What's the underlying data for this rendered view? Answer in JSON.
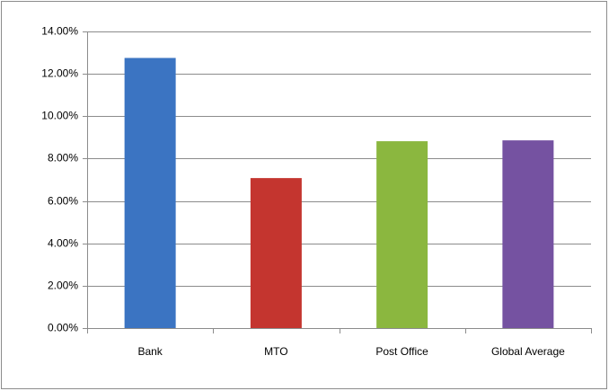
{
  "chart_data": {
    "type": "bar",
    "categories": [
      "Bank",
      "MTO",
      "Post Office",
      "Global Average"
    ],
    "values": [
      12.75,
      7.08,
      8.82,
      8.86
    ],
    "colors": [
      "#3b74c2",
      "#c4352f",
      "#8bb73f",
      "#7552a1"
    ],
    "ylim": [
      0,
      14
    ],
    "yticks": [
      {
        "value": 0,
        "label": "0.00%"
      },
      {
        "value": 2,
        "label": "2.00%"
      },
      {
        "value": 4,
        "label": "4.00%"
      },
      {
        "value": 6,
        "label": "6.00%"
      },
      {
        "value": 8,
        "label": "8.00%"
      },
      {
        "value": 10,
        "label": "10.00%"
      },
      {
        "value": 12,
        "label": "12.00%"
      },
      {
        "value": 14,
        "label": "14.00%"
      }
    ],
    "grid": true
  }
}
